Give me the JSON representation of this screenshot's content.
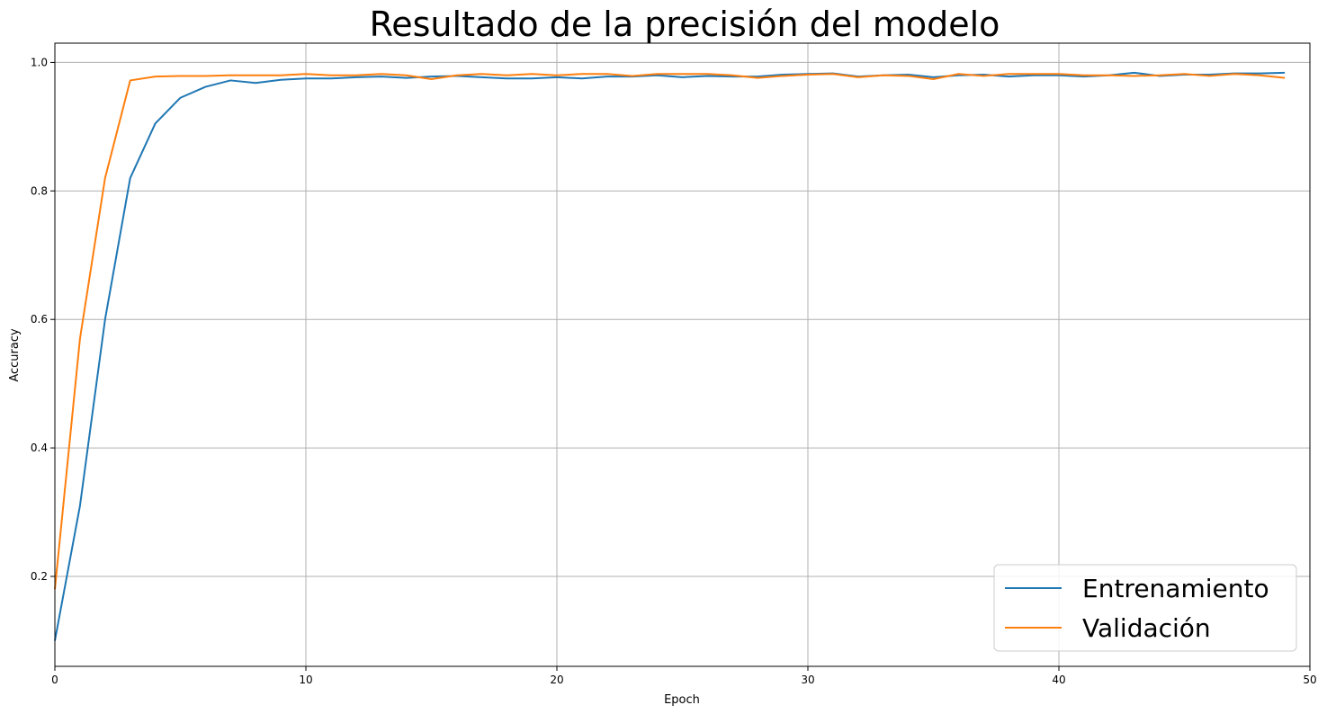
{
  "chart_data": {
    "type": "line",
    "title": "Resultado de la precisión del modelo",
    "xlabel": "Epoch",
    "ylabel": "Accuracy",
    "xlim": [
      0,
      50
    ],
    "ylim": [
      0.06,
      1.03
    ],
    "xticks": [
      0,
      10,
      20,
      30,
      40,
      50
    ],
    "yticks": [
      0.2,
      0.4,
      0.6,
      0.8,
      1.0
    ],
    "grid": true,
    "legend_position": "lower-right",
    "x": [
      0,
      1,
      2,
      3,
      4,
      5,
      6,
      7,
      8,
      9,
      10,
      11,
      12,
      13,
      14,
      15,
      16,
      17,
      18,
      19,
      20,
      21,
      22,
      23,
      24,
      25,
      26,
      27,
      28,
      29,
      30,
      31,
      32,
      33,
      34,
      35,
      36,
      37,
      38,
      39,
      40,
      41,
      42,
      43,
      44,
      45,
      46,
      47,
      48,
      49
    ],
    "series": [
      {
        "name": "Entrenamiento",
        "color": "#1f77b4",
        "values": [
          0.1,
          0.31,
          0.6,
          0.82,
          0.905,
          0.945,
          0.962,
          0.972,
          0.968,
          0.973,
          0.975,
          0.975,
          0.977,
          0.978,
          0.976,
          0.978,
          0.979,
          0.977,
          0.975,
          0.975,
          0.977,
          0.975,
          0.978,
          0.978,
          0.98,
          0.977,
          0.979,
          0.978,
          0.978,
          0.981,
          0.982,
          0.983,
          0.978,
          0.98,
          0.981,
          0.977,
          0.98,
          0.981,
          0.978,
          0.98,
          0.98,
          0.978,
          0.98,
          0.984,
          0.979,
          0.981,
          0.981,
          0.983,
          0.983,
          0.984
        ]
      },
      {
        "name": "Validación",
        "color": "#ff7f0e",
        "values": [
          0.18,
          0.57,
          0.82,
          0.972,
          0.978,
          0.979,
          0.979,
          0.98,
          0.98,
          0.98,
          0.982,
          0.98,
          0.98,
          0.982,
          0.98,
          0.974,
          0.98,
          0.982,
          0.98,
          0.982,
          0.98,
          0.982,
          0.982,
          0.979,
          0.982,
          0.982,
          0.982,
          0.98,
          0.976,
          0.979,
          0.981,
          0.982,
          0.977,
          0.98,
          0.979,
          0.974,
          0.982,
          0.979,
          0.982,
          0.982,
          0.982,
          0.98,
          0.98,
          0.979,
          0.98,
          0.982,
          0.979,
          0.982,
          0.98,
          0.976
        ]
      }
    ]
  }
}
